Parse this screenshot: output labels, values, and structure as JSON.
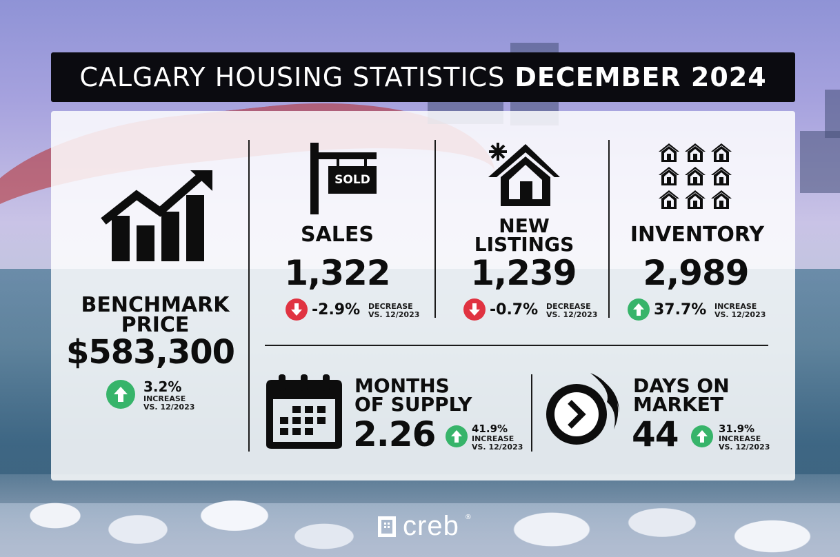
{
  "title": {
    "light": "CALGARY HOUSING STATISTICS",
    "bold": "DECEMBER 2024"
  },
  "benchmark": {
    "label_line1": "BENCHMARK",
    "label_line2": "PRICE",
    "value": "$583,300",
    "change": "3.2%",
    "direction": "INCREASE",
    "comparison": "VS. 12/2023"
  },
  "sales": {
    "sign_text": "SOLD",
    "label": "SALES",
    "value": "1,322",
    "change": "-2.9%",
    "direction": "DECREASE",
    "comparison": "VS. 12/2023"
  },
  "new_listings": {
    "label_line1": "NEW",
    "label_line2": "LISTINGS",
    "value": "1,239",
    "change": "-0.7%",
    "direction": "DECREASE",
    "comparison": "VS. 12/2023"
  },
  "inventory": {
    "label": "INVENTORY",
    "value": "2,989",
    "change": "37.7%",
    "direction": "INCREASE",
    "comparison": "VS. 12/2023"
  },
  "months_of_supply": {
    "label_line1": "MONTHS",
    "label_line2": "OF SUPPLY",
    "value": "2.26",
    "change": "41.9%",
    "direction": "INCREASE",
    "comparison": "VS. 12/2023"
  },
  "days_on_market": {
    "label_line1": "DAYS ON",
    "label_line2": "MARKET",
    "value": "44",
    "change": "31.9%",
    "direction": "INCREASE",
    "comparison": "VS. 12/2023"
  },
  "logo": {
    "text": "creb",
    "mark": "®"
  },
  "colors": {
    "increase": "#37b46a",
    "decrease": "#e03341",
    "title_bg": "#0b0b10"
  },
  "icons": [
    "growth-chart-icon",
    "sold-sign-icon",
    "new-house-icon",
    "houses-grid-icon",
    "calendar-icon",
    "fast-clock-icon",
    "arrow-up-icon",
    "arrow-down-icon"
  ]
}
